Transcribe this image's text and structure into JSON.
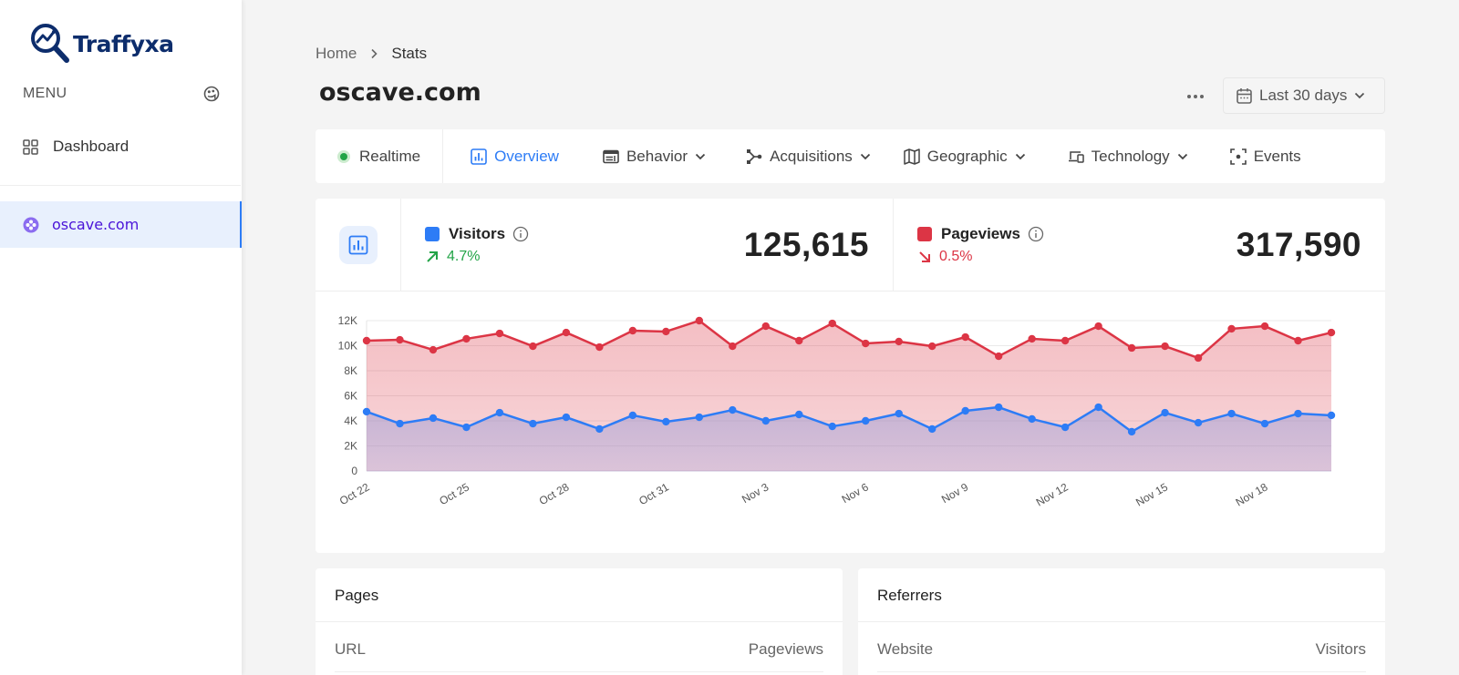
{
  "brand": {
    "name": "Traffyxa",
    "color": "#0d2d6c"
  },
  "sidebar": {
    "menu_label": "MENU",
    "menu_icon": "palette-icon",
    "items": [
      {
        "label": "Dashboard",
        "icon": "grid-icon",
        "active": false
      },
      {
        "label": "oscave.com",
        "icon": "site-icon",
        "active": true
      }
    ]
  },
  "breadcrumb": {
    "home": "Home",
    "current": "Stats"
  },
  "page": {
    "title": "oscave.com"
  },
  "toolbar": {
    "more_icon": "ellipsis-icon",
    "date_range": "Last 30 days"
  },
  "tabs": [
    {
      "label": "Realtime",
      "icon": "live-dot-icon",
      "dropdown": false
    },
    {
      "label": "Overview",
      "icon": "bar-chart-icon",
      "dropdown": false,
      "active": true
    },
    {
      "label": "Behavior",
      "icon": "layout-icon",
      "dropdown": true
    },
    {
      "label": "Acquisitions",
      "icon": "branch-icon",
      "dropdown": true
    },
    {
      "label": "Geographic",
      "icon": "map-icon",
      "dropdown": true
    },
    {
      "label": "Technology",
      "icon": "devices-icon",
      "dropdown": true
    },
    {
      "label": "Events",
      "icon": "focus-icon",
      "dropdown": false
    }
  ],
  "stats": {
    "visitors": {
      "label": "Visitors",
      "change": "4.7%",
      "direction": "up",
      "value": "125,615",
      "color": "#2d7cf6",
      "change_color": "#22a447"
    },
    "pageviews": {
      "label": "Pageviews",
      "change": "0.5%",
      "direction": "down",
      "value": "317,590",
      "color": "#dc3545",
      "change_color": "#dc3545"
    }
  },
  "chart_data": {
    "type": "area",
    "title": "",
    "xlabel": "",
    "ylabel": "",
    "ylim": [
      0,
      12000
    ],
    "yticks": [
      "0",
      "2K",
      "4K",
      "6K",
      "8K",
      "10K",
      "12K"
    ],
    "grid": true,
    "x": [
      "Oct 22",
      "Oct 23",
      "Oct 24",
      "Oct 25",
      "Oct 26",
      "Oct 27",
      "Oct 28",
      "Oct 29",
      "Oct 30",
      "Oct 31",
      "Nov 1",
      "Nov 2",
      "Nov 3",
      "Nov 4",
      "Nov 5",
      "Nov 6",
      "Nov 7",
      "Nov 8",
      "Nov 9",
      "Nov 10",
      "Nov 11",
      "Nov 12",
      "Nov 13",
      "Nov 14",
      "Nov 15",
      "Nov 16",
      "Nov 17",
      "Nov 18",
      "Nov 19",
      "Nov 20"
    ],
    "xtick_labels": [
      "Oct 22",
      "Oct 25",
      "Oct 28",
      "Oct 31",
      "Nov 3",
      "Nov 6",
      "Nov 9",
      "Nov 12",
      "Nov 15",
      "Nov 18"
    ],
    "series": [
      {
        "name": "Pageviews",
        "color": "#dc3545",
        "values": [
          10400,
          10470,
          9670,
          10550,
          10980,
          9960,
          11050,
          9890,
          11200,
          11130,
          12000,
          9960,
          11560,
          10400,
          11780,
          10180,
          10330,
          9960,
          10690,
          9160,
          10550,
          10400,
          11560,
          9820,
          9960,
          9020,
          11350,
          11560,
          10400,
          11050
        ]
      },
      {
        "name": "Visitors",
        "color": "#2d7cf6",
        "values": [
          4730,
          3780,
          4220,
          3490,
          4650,
          3780,
          4290,
          3350,
          4440,
          3930,
          4290,
          4870,
          4000,
          4510,
          3560,
          4000,
          4580,
          3350,
          4800,
          5090,
          4150,
          3490,
          5090,
          3130,
          4650,
          3850,
          4580,
          3780,
          4580,
          4440
        ]
      }
    ],
    "legend": [
      "Visitors",
      "Pageviews"
    ]
  },
  "panels": {
    "pages": {
      "title": "Pages",
      "col_left": "URL",
      "col_right": "Pageviews"
    },
    "referrers": {
      "title": "Referrers",
      "col_left": "Website",
      "col_right": "Visitors"
    }
  }
}
